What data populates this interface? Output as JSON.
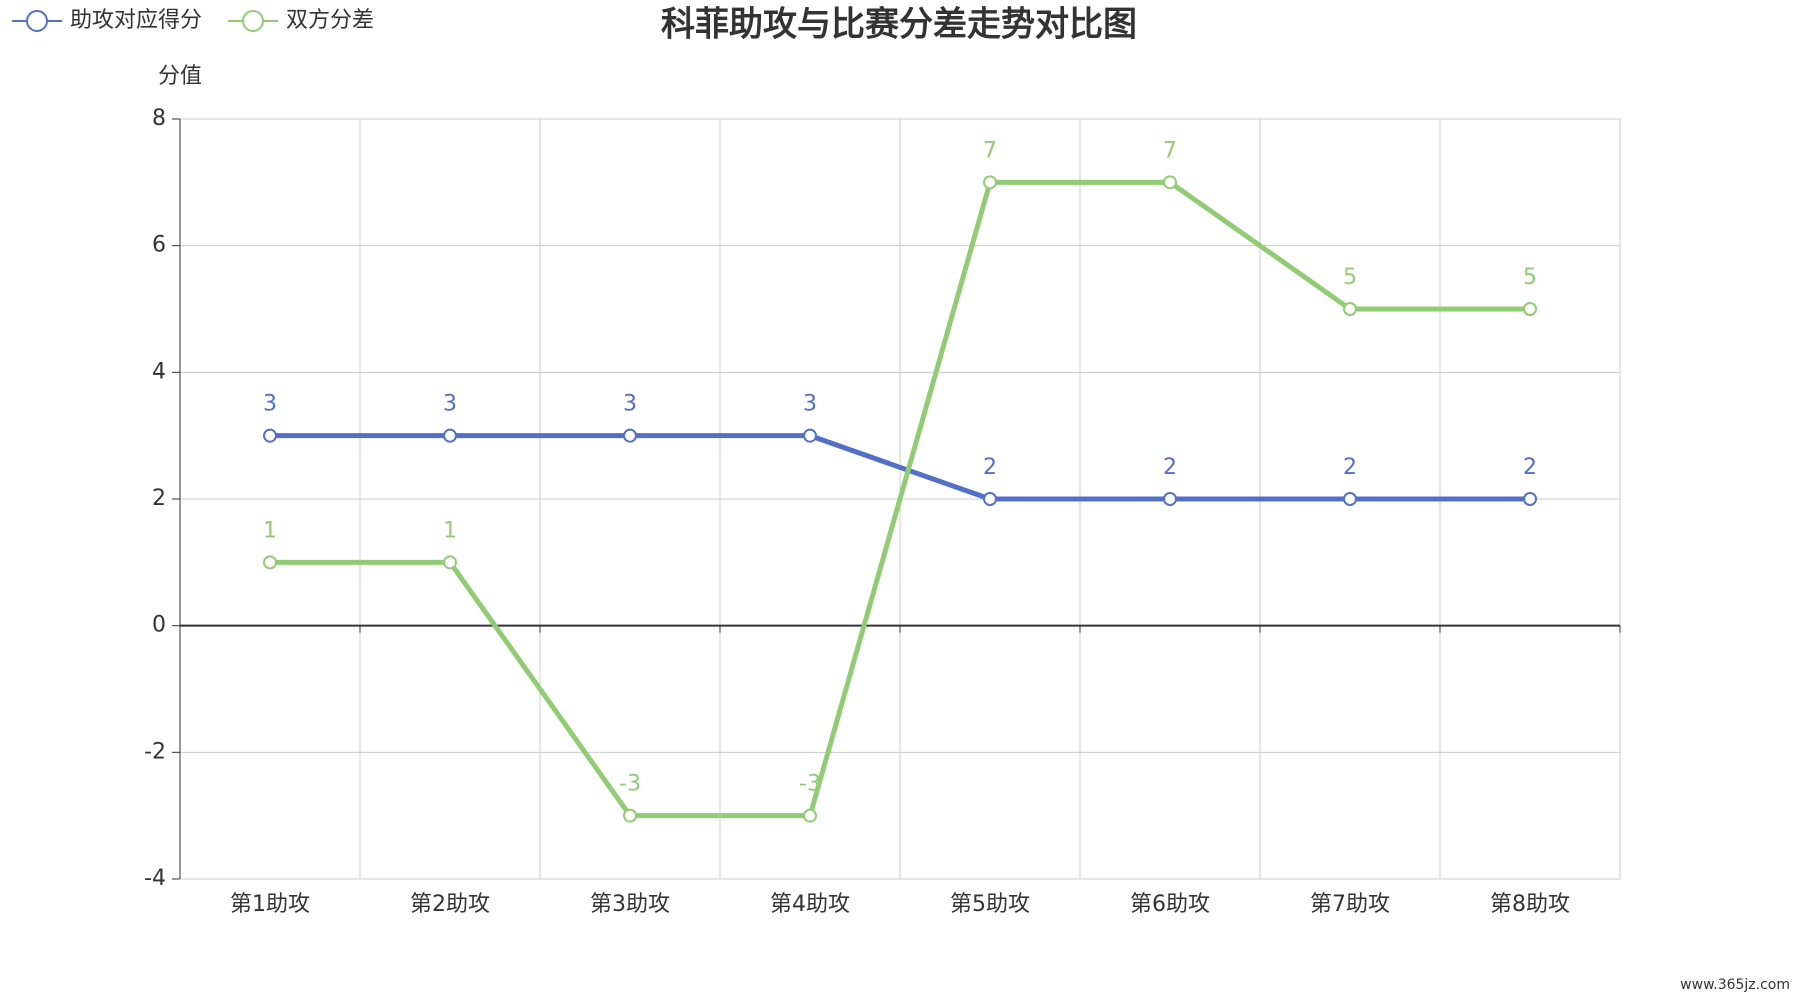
{
  "chart_data": {
    "type": "line",
    "title": "科菲助攻与比赛分差走势对比图",
    "y_label": "分值",
    "categories": [
      "第1助攻",
      "第2助攻",
      "第3助攻",
      "第4助攻",
      "第5助攻",
      "第6助攻",
      "第7助攻",
      "第8助攻"
    ],
    "series": [
      {
        "name": "助攻对应得分",
        "color": "#5470c6",
        "values": [
          3,
          3,
          3,
          3,
          2,
          2,
          2,
          2
        ]
      },
      {
        "name": "双方分差",
        "color": "#91cc75",
        "values": [
          1,
          1,
          -3,
          -3,
          7,
          7,
          5,
          5
        ]
      }
    ],
    "ylim": [
      -4,
      8
    ],
    "yticks": [
      -4,
      -2,
      0,
      2,
      4,
      6,
      8
    ],
    "grid": true,
    "legend": "top-left",
    "watermark": "www.365jz.com"
  }
}
